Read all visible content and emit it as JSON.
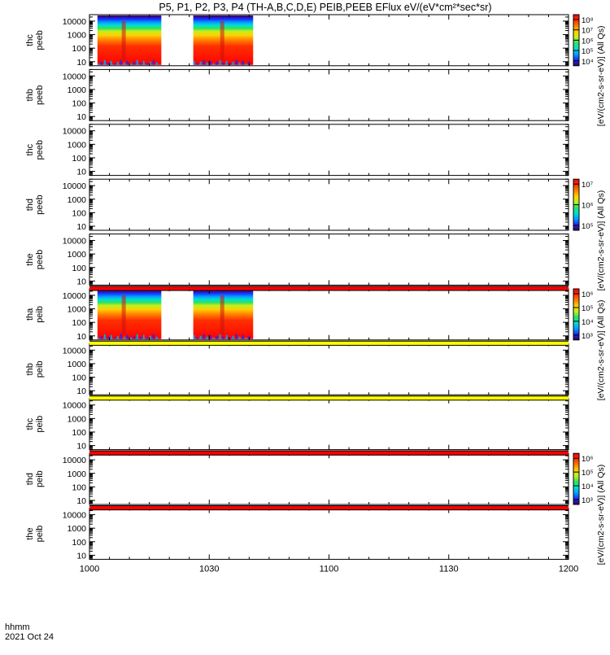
{
  "title": "P5, P1, P2, P3, P4 (TH-A,B,C,D,E) PEIB,PEEB EFlux eV/(eV*cm²*sec*sr)",
  "x_axis": {
    "label_line1": "hhmm",
    "label_line2": "2021 Oct 24",
    "ticks": [
      "1000",
      "1030",
      "1100",
      "1130",
      "1200"
    ]
  },
  "y_tick_labels": [
    "10",
    "100",
    "1000",
    "10000"
  ],
  "colorbars": [
    {
      "label": "[eV/(cm2-s-sr-eV)] (All Qs)",
      "ticks": [
        "10⁴",
        "10⁵",
        "10⁶",
        "10⁷",
        "10⁸"
      ]
    },
    {
      "label": "[eV/(cm2-s-sr-eV)] (All Qs)",
      "ticks": [
        "10⁵",
        "10⁶",
        "10⁷"
      ]
    },
    {
      "label": "[eV/(cm2-s-sr-eV)] (All Qs)",
      "ticks": [
        "10³",
        "10⁴",
        "10⁵",
        "10⁶"
      ]
    },
    {
      "label": "[eV/(cm2-s-sr-eV)] (All Qs)",
      "ticks": [
        "10³",
        "10⁴",
        "10⁵",
        "10⁶"
      ]
    }
  ],
  "colors": {
    "red_bar": "#ff0000",
    "yellow_bar": "#ffff00",
    "spectrogram": [
      "#3a0050",
      "#1e28ff",
      "#00a0ff",
      "#00e0d0",
      "#30e060",
      "#c0f020",
      "#ffd000",
      "#ff8000",
      "#ff3000",
      "#ff0000"
    ]
  },
  "chart_data": {
    "type": "heatmap",
    "x_range": [
      "1000",
      "1200"
    ],
    "y_scale": "log",
    "y_range_eV": [
      5,
      30000
    ],
    "panels": [
      {
        "name": "thc peeb",
        "line1": "thc",
        "line2": "peeb",
        "data_segments": [
          [
            "1002",
            "1018"
          ],
          [
            "1026",
            "1041"
          ]
        ],
        "flag_bar": null
      },
      {
        "name": "thb peeb",
        "line1": "thb",
        "line2": "peeb",
        "data_segments": [],
        "flag_bar": null
      },
      {
        "name": "thc peeb",
        "line1": "thc",
        "line2": "peeb",
        "data_segments": [],
        "flag_bar": null
      },
      {
        "name": "thd peeb",
        "line1": "thd",
        "line2": "peeb",
        "data_segments": [],
        "flag_bar": null
      },
      {
        "name": "the peeb",
        "line1": "the",
        "line2": "peeb",
        "data_segments": [],
        "flag_bar": "red"
      },
      {
        "name": "tha peib",
        "line1": "tha",
        "line2": "peib",
        "data_segments": [
          [
            "1002",
            "1018"
          ],
          [
            "1026",
            "1041"
          ]
        ],
        "flag_bar": "yellow"
      },
      {
        "name": "thb peib",
        "line1": "thb",
        "line2": "peib",
        "data_segments": [],
        "flag_bar": "yellow"
      },
      {
        "name": "thc peib",
        "line1": "thc",
        "line2": "peib",
        "data_segments": [],
        "flag_bar": "red"
      },
      {
        "name": "thd peib",
        "line1": "thd",
        "line2": "peib",
        "data_segments": [],
        "flag_bar": "red"
      },
      {
        "name": "the peib",
        "line1": "the",
        "line2": "peib",
        "data_segments": [],
        "flag_bar": null
      }
    ]
  }
}
